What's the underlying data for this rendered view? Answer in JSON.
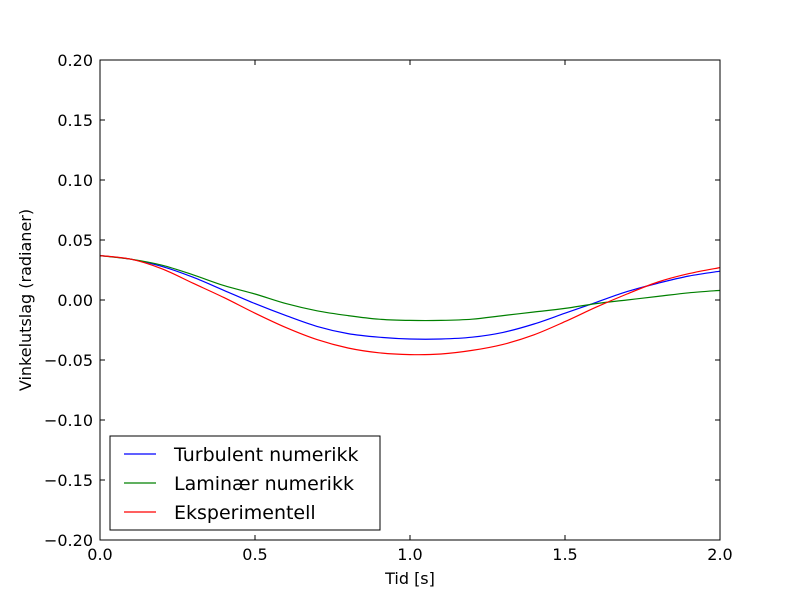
{
  "chart_data": {
    "type": "line",
    "title": "",
    "xlabel": "Tid [s]",
    "ylabel": "Vinkelutslag (radianer)",
    "xlim": [
      0.0,
      2.0
    ],
    "ylim": [
      -0.2,
      0.2
    ],
    "xticks": [
      0.0,
      0.5,
      1.0,
      1.5,
      2.0
    ],
    "xtick_labels": [
      "0.0",
      "0.5",
      "1.0",
      "1.5",
      "2.0"
    ],
    "yticks": [
      0.2,
      0.15,
      0.1,
      0.05,
      0.0,
      -0.05,
      -0.1,
      -0.15,
      -0.2
    ],
    "ytick_labels": [
      "0.20",
      "0.15",
      "0.10",
      "0.05",
      "0.00",
      "−0.05",
      "−0.10",
      "−0.15",
      "−0.20"
    ],
    "grid": false,
    "legend_position": "lower-left",
    "x": [
      0.0,
      0.1,
      0.2,
      0.3,
      0.4,
      0.5,
      0.6,
      0.7,
      0.8,
      0.9,
      1.0,
      1.1,
      1.2,
      1.3,
      1.4,
      1.5,
      1.6,
      1.7,
      1.8,
      1.9,
      2.0
    ],
    "series": [
      {
        "name": "Turbulent numerikk",
        "color": "#0000ff",
        "values": [
          0.037,
          0.034,
          0.028,
          0.019,
          0.008,
          -0.003,
          -0.013,
          -0.022,
          -0.028,
          -0.031,
          -0.0325,
          -0.0325,
          -0.031,
          -0.027,
          -0.02,
          -0.011,
          -0.002,
          0.007,
          0.014,
          0.02,
          0.024
        ]
      },
      {
        "name": "Laminær numerikk",
        "color": "#008000",
        "values": [
          0.037,
          0.034,
          0.029,
          0.021,
          0.012,
          0.005,
          -0.003,
          -0.009,
          -0.013,
          -0.016,
          -0.017,
          -0.017,
          -0.016,
          -0.013,
          -0.01,
          -0.007,
          -0.003,
          0.0,
          0.003,
          0.006,
          0.008
        ]
      },
      {
        "name": "Eksperimentell",
        "color": "#ff0000",
        "values": [
          0.037,
          0.034,
          0.026,
          0.014,
          0.002,
          -0.011,
          -0.023,
          -0.033,
          -0.04,
          -0.044,
          -0.0455,
          -0.045,
          -0.042,
          -0.037,
          -0.029,
          -0.018,
          -0.006,
          0.005,
          0.015,
          0.022,
          0.027
        ]
      }
    ]
  }
}
